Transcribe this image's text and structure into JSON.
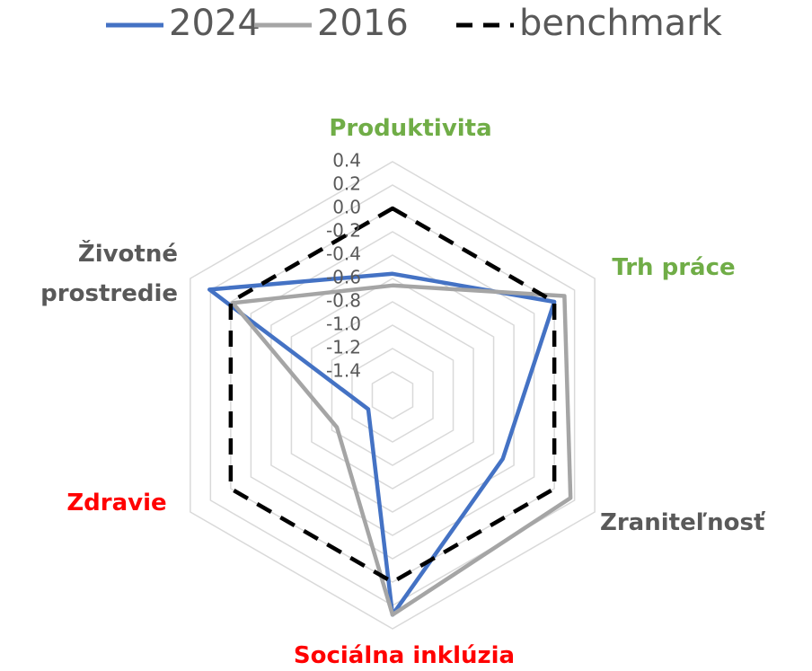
{
  "chart_data": {
    "type": "radar",
    "categories": [
      "Produktivita",
      "Trh práce",
      "Zraniteľnosť",
      "Sociálna inklúzia",
      "Zdravie",
      "Životné prostredie"
    ],
    "category_colors": [
      "#70ad47",
      "#70ad47",
      "#595959",
      "#ff0000",
      "#ff0000",
      "#595959"
    ],
    "series": [
      {
        "name": "2024",
        "color": "#4472c4",
        "style": "solid",
        "values": [
          -0.56,
          0.0,
          -0.51,
          0.28,
          -1.36,
          0.21
        ]
      },
      {
        "name": "2016",
        "color": "#a5a5a5",
        "style": "solid",
        "values": [
          -0.66,
          0.1,
          0.16,
          0.28,
          -1.05,
          -0.02
        ]
      },
      {
        "name": "benchmark",
        "color": "#000000",
        "style": "dashed",
        "values": [
          0,
          0,
          0,
          0,
          0,
          0
        ]
      }
    ],
    "ylim": [
      -1.6,
      0.4
    ],
    "yticks": [
      0.4,
      0.2,
      {
        "value": 0,
        "label": "0.0"
      },
      -0.2,
      -0.4,
      -0.6,
      -0.8,
      {
        "value": -1,
        "label": "-1.0"
      },
      -1.2,
      -1.4
    ],
    "grid": true,
    "legend": "top"
  }
}
